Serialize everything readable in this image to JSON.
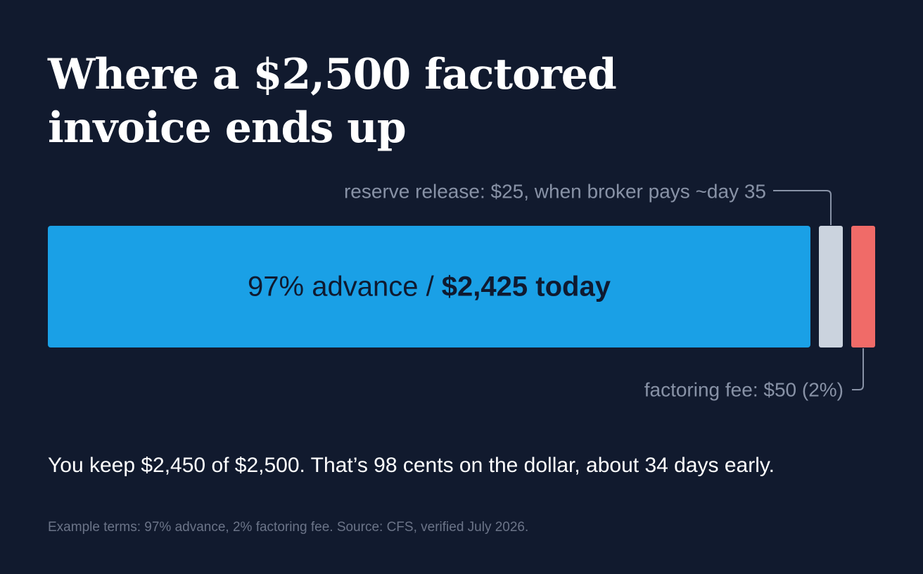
{
  "chart_data": {
    "type": "bar",
    "orientation": "horizontal",
    "stacked": true,
    "title_lines": [
      "Where a $2,500 factored",
      "invoice ends up"
    ],
    "total": 2500,
    "segments": [
      {
        "key": "advance",
        "value": 2425,
        "color": "#1aa0e6",
        "label_prefix": "97% advance / ",
        "label_strong": "$2,425 today"
      },
      {
        "key": "reserve",
        "value": 25,
        "color": "#cbd3de",
        "annotation": "reserve release: $25, when broker pays ~day 35",
        "annotation_position": "above"
      },
      {
        "key": "fee",
        "value": 50,
        "color": "#f06b68",
        "annotation": "factoring fee: $50 (2%)",
        "annotation_position": "below"
      }
    ]
  },
  "summary": "You keep $2,450 of $2,500. That’s 98 cents on the dollar, about 34 days early.",
  "source": "Example terms: 97% advance, 2% factoring fee. Source: CFS, verified July 2026."
}
